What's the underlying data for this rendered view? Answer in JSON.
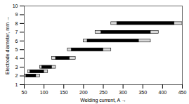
{
  "chart_data": {
    "type": "range_bar",
    "orientation": "horizontal",
    "xlabel": "Welding current, A",
    "ylabel": "Electrode diameter, mm",
    "xlim": [
      50,
      450
    ],
    "ylim": [
      1,
      10
    ],
    "xticks": [
      50,
      100,
      150,
      200,
      250,
      300,
      350,
      400,
      450
    ],
    "yticks": [
      1,
      2,
      3,
      4,
      5,
      6,
      7,
      8,
      9,
      10
    ],
    "y": [
      2.0,
      2.5,
      3.0,
      4.0,
      5.0,
      6.0,
      7.0,
      8.0
    ],
    "series": [
      {
        "color": "#d8d8d8",
        "start": [
          50,
          60,
          90,
          120,
          160,
          200,
          230,
          270
        ],
        "end": [
          90,
          110,
          130,
          180,
          270,
          370,
          390,
          450
        ]
      },
      {
        "color": "#000000",
        "start": [
          55,
          65,
          95,
          130,
          170,
          210,
          245,
          285
        ],
        "end": [
          80,
          100,
          120,
          165,
          250,
          340,
          370,
          430
        ]
      }
    ]
  }
}
